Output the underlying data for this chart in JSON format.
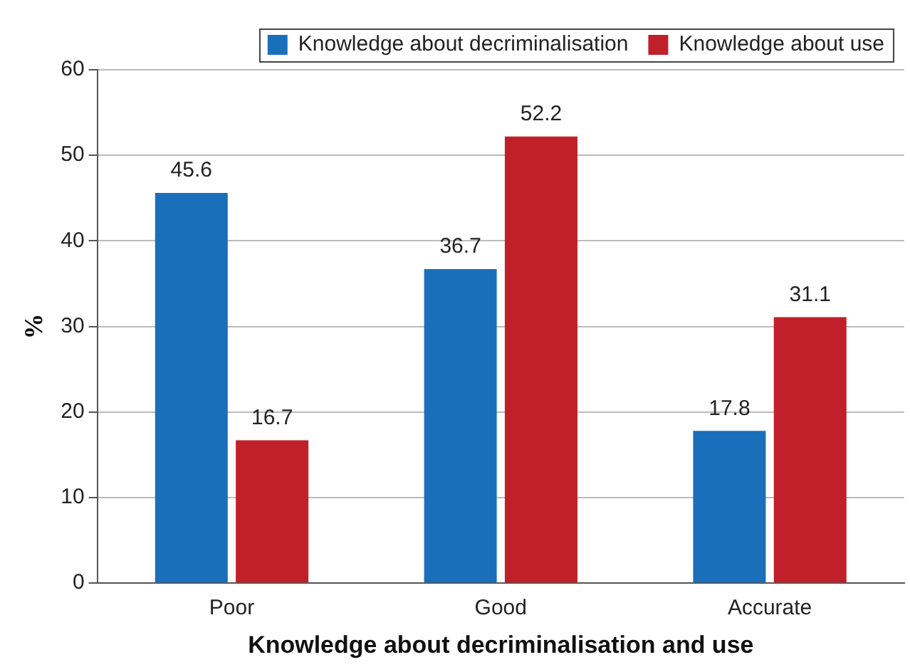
{
  "chart_data": {
    "type": "bar",
    "xlabel": "Knowledge about decriminalisation and use",
    "ylabel": "%",
    "categories": [
      "Poor",
      "Good",
      "Accurate"
    ],
    "series": [
      {
        "name": "Knowledge about decriminalisation",
        "color": "#1a6fba",
        "values": [
          45.6,
          36.7,
          17.8
        ]
      },
      {
        "name": "Knowledge about use",
        "color": "#c0202a",
        "values": [
          16.7,
          52.2,
          31.1
        ]
      }
    ],
    "ylim": [
      0,
      60
    ],
    "yticks": [
      0,
      10,
      20,
      30,
      40,
      50,
      60
    ],
    "grid": "y",
    "legend": "top right",
    "data_labels": true
  }
}
